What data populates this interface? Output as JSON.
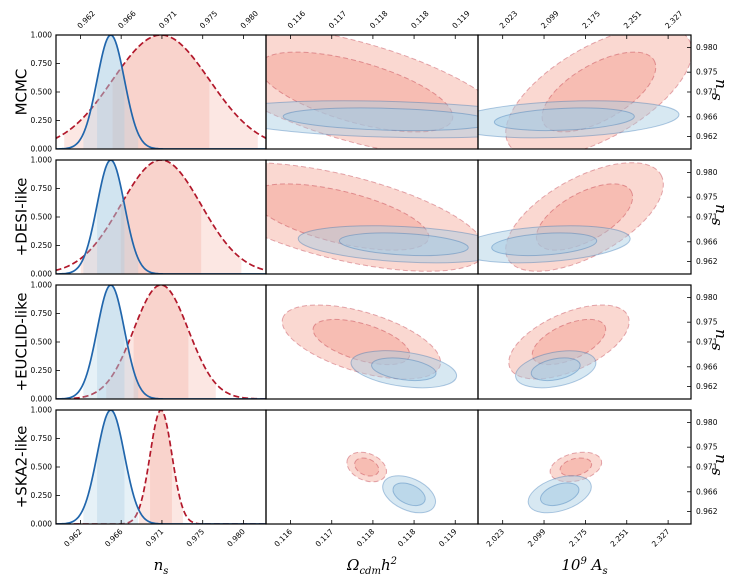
{
  "chart_data": {
    "type": "triangle-posterior",
    "rows": [
      {
        "label": "MCMC"
      },
      {
        "label": "+DESI-like"
      },
      {
        "label": "+EUCLID-like"
      },
      {
        "label": "+SKA2-like"
      }
    ],
    "columns": [
      {
        "label": "n_s",
        "label_text": "ns",
        "ticks": [
          "0.962",
          "0.966",
          "0.971",
          "0.975",
          "0.980"
        ],
        "range": [
          0.9595,
          0.9825
        ]
      },
      {
        "label": "Omega_cdm h^2",
        "label_text": "Ωcdmh2",
        "ticks": [
          "0.116",
          "0.117",
          "0.118",
          "0.118",
          "0.119"
        ],
        "range": [
          0.1155,
          0.1195
        ]
      },
      {
        "label": "10^9 A_s",
        "label_text": "10⁹ As",
        "ticks": [
          "2.023",
          "2.099",
          "2.175",
          "2.251",
          "2.327"
        ],
        "range": [
          1.99,
          2.36
        ]
      }
    ],
    "ns_axis": {
      "ticks": [
        "0.962",
        "0.966",
        "0.971",
        "0.975",
        "0.980"
      ],
      "values": [
        0.962,
        0.966,
        0.971,
        0.975,
        0.98
      ],
      "range": [
        0.9595,
        0.9825
      ],
      "label": "ns"
    },
    "pdf_axis": {
      "ticks": [
        "0.000",
        "0.250",
        "0.500",
        "0.750",
        "1.000"
      ],
      "values": [
        0,
        0.25,
        0.5,
        0.75,
        1.0
      ],
      "range": [
        0,
        1.0
      ]
    },
    "series": [
      {
        "name": "red-dashed",
        "color": "#b2182b",
        "fill": "#f4a89a",
        "dashed": true,
        "ns_mean": [
          0.971,
          0.971,
          0.971,
          0.971
        ],
        "ns_sigma": [
          0.0053,
          0.0044,
          0.003,
          0.0012
        ],
        "omega_cdm_mean": [
          0.1172,
          0.1169,
          0.1173,
          0.1174
        ],
        "omega_cdm_sigma": [
          0.0012,
          0.0011,
          0.0006,
          0.00015
        ],
        "As_mean": [
          2.2,
          2.175,
          2.148,
          2.16
        ],
        "As_sigma": [
          0.065,
          0.055,
          0.042,
          0.018
        ],
        "correlation": [
          0.62,
          0.6,
          0.55,
          0.3
        ]
      },
      {
        "name": "blue-solid",
        "color": "#2166ac",
        "fill": "#a6cbe3",
        "dashed": false,
        "ns_mean": [
          0.9655,
          0.9655,
          0.9655,
          0.9655
        ],
        "ns_sigma": [
          0.0015,
          0.0015,
          0.0015,
          0.0015
        ],
        "omega_cdm_mean": [
          0.1178,
          0.1181,
          0.1181,
          0.1182
        ],
        "omega_cdm_sigma": [
          0.0013,
          0.0008,
          0.0004,
          0.0002
        ],
        "As_mean": [
          2.14,
          2.105,
          2.125,
          2.132
        ],
        "As_sigma": [
          0.08,
          0.06,
          0.028,
          0.022
        ],
        "correlation": [
          0.25,
          0.3,
          0.35,
          0.4
        ]
      }
    ]
  }
}
